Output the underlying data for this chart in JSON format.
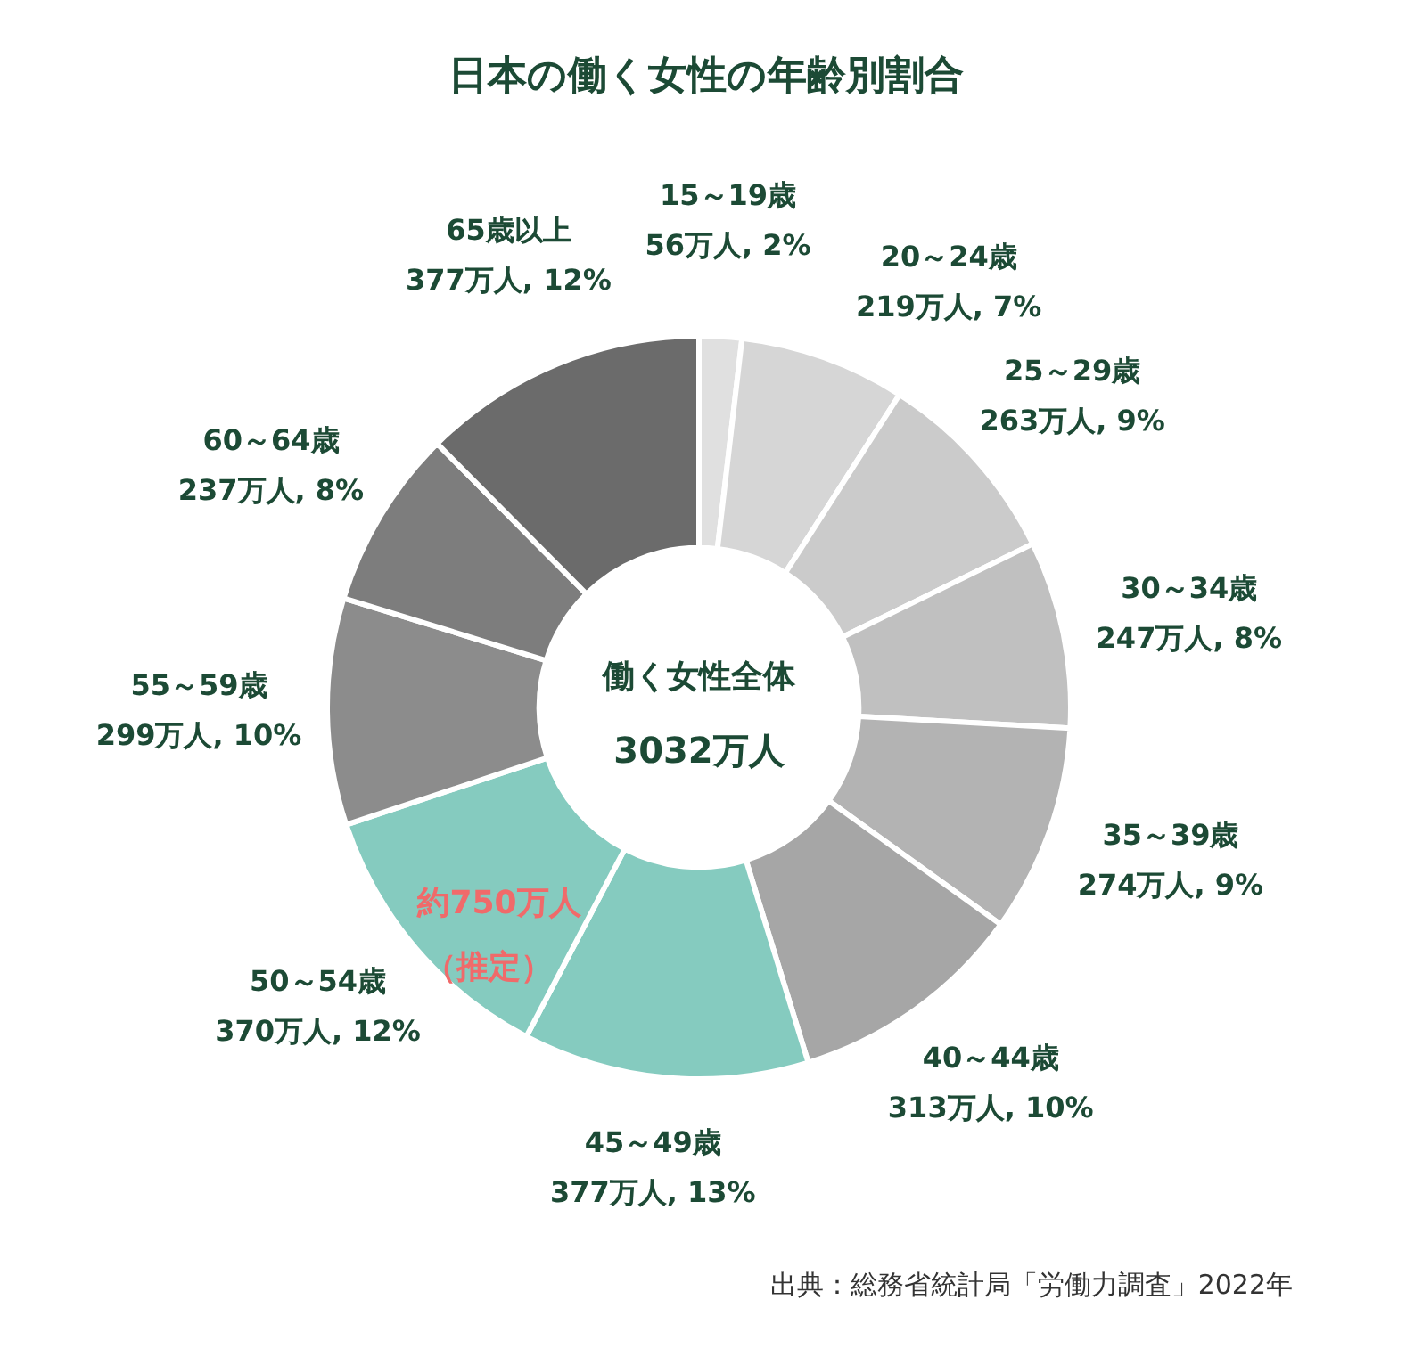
{
  "chart_data": {
    "type": "donut",
    "title": "日本の働く女性の年齢別割合",
    "categories": [
      "15～19歳",
      "20～24歳",
      "25～29歳",
      "30～34歳",
      "35～39歳",
      "40～44歳",
      "45～49歳",
      "50～54歳",
      "55～59歳",
      "60～64歳",
      "65歳以上"
    ],
    "values": [
      56,
      219,
      263,
      247,
      274,
      313,
      377,
      370,
      299,
      237,
      377
    ],
    "value_labels": [
      "56万人, 2%",
      "219万人, 7%",
      "263万人, 9%",
      "247万人, 8%",
      "274万人, 9%",
      "313万人, 10%",
      "377万人, 13%",
      "370万人, 12%",
      "299万人, 10%",
      "237万人, 8%",
      "377万人, 12%"
    ],
    "colors": [
      "#e0e0e0",
      "#d6d6d6",
      "#cbcbcb",
      "#c0c0c0",
      "#b3b3b3",
      "#a6a6a6",
      "#85cbbf",
      "#85cbbf",
      "#8c8c8c",
      "#7d7d7d",
      "#6b6b6b"
    ],
    "annotations": [
      "働く女性全体",
      "3032万人",
      "約750万人",
      "（推定）",
      "出典：総務省統計局「労働力調査」2022年"
    ],
    "legend": false
  }
}
